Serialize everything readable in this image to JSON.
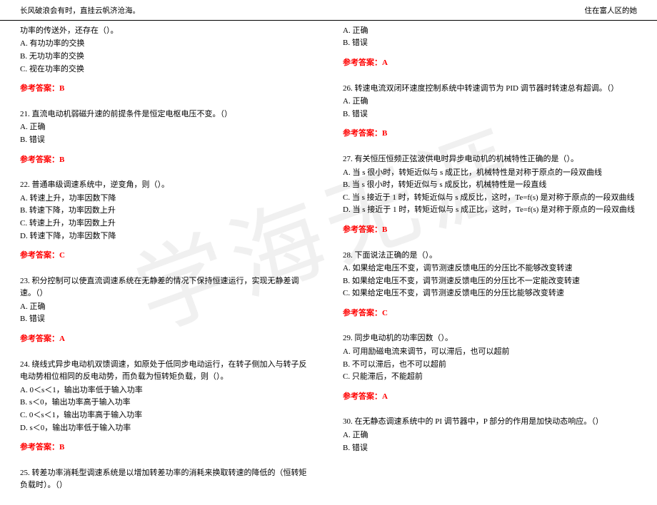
{
  "header": {
    "left": "长风破浪会有时，直挂云帆济沧海。",
    "right": "住在富人区的她"
  },
  "leftColumn": {
    "q20": {
      "cont": "功率的传送外，还存在（）。",
      "optA": "A. 有功功率的交换",
      "optB": "B. 无功功率的交换",
      "optC": "C. 视在功率的交换",
      "answer": "参考答案：B"
    },
    "q21": {
      "text": "21. 直流电动机弱磁升速的前提条件是恒定电枢电压不变。（）",
      "optA": "A. 正确",
      "optB": "B. 错误",
      "answer": "参考答案：B"
    },
    "q22": {
      "text": "22. 普通串级调速系统中，逆变角，则（）。",
      "optA": "A. 转速上升，功率因数下降",
      "optB": "B. 转速下降，功率因数上升",
      "optC": "C. 转速上升，功率因数上升",
      "optD": "D. 转速下降，功率因数下降",
      "answer": "参考答案：C"
    },
    "q23": {
      "text": "23. 积分控制可以使直流调速系统在无静差的情况下保持恒速运行，实现无静差调速。（）",
      "optA": "A. 正确",
      "optB": "B. 错误",
      "answer": "参考答案：A"
    },
    "q24": {
      "text": "24. 绕线式异步电动机双馈调速，如原处于低同步电动运行，在转子侧加入与转子反电动势相位相同的反电动势，而负载为恒转矩负载，则（）。",
      "optA": "A. 0＜s＜1，输出功率低于输入功率",
      "optB": "B. s＜0，输出功率高于输入功率",
      "optC": "C. 0＜s＜1，输出功率高于输入功率",
      "optD": "D. s＜0，输出功率低于输入功率",
      "answer": "参考答案：B"
    },
    "q25": {
      "text": "25. 转差功率消耗型调速系统是以增加转差功率的消耗来换取转速的降低的（恒转矩负载时）。（）"
    }
  },
  "rightColumn": {
    "q25r": {
      "optA": "A. 正确",
      "optB": "B. 错误",
      "answer": "参考答案：A"
    },
    "q26": {
      "text": "26. 转速电流双闭环速度控制系统中转速调节为 PID 调节器时转速总有超调。（）",
      "optA": "A. 正确",
      "optB": "B. 错误",
      "answer": "参考答案：B"
    },
    "q27": {
      "text": "27. 有关恒压恒频正弦波供电时异步电动机的机械特性正确的是（）。",
      "optA": "A. 当 s 很小时，转矩近似与 s 成正比，机械特性是对称于原点的一段双曲线",
      "optB": "B. 当 s 很小时，转矩近似与 s 成反比，机械特性是一段直线",
      "optC": "C. 当 s 接近于 1 时，转矩近似与 s 成反比，这时，Te=f(s) 是对称于原点的一段双曲线",
      "optD": "D. 当 s 接近于 1 时，转矩近似与 s 成正比，这时，Te=f(s) 是对称于原点的一段双曲线",
      "answer": "参考答案：B"
    },
    "q28": {
      "text": "28. 下面说法正确的是（）。",
      "optA": "A. 如果给定电压不变，调节测速反馈电压的分压比不能够改变转速",
      "optB": "B. 如果给定电压不变，调节测速反馈电压的分压比不一定能改变转速",
      "optC": "C. 如果给定电压不变，调节测速反馈电压的分压比能够改变转速",
      "answer": "参考答案：C"
    },
    "q29": {
      "text": "29. 同步电动机的功率因数（）。",
      "optA": "A. 可用励磁电流来调节，可以滞后，也可以超前",
      "optB": "B. 不可以滞后，也不可以超前",
      "optC": "C. 只能滞后，不能超前",
      "answer": "参考答案：A"
    },
    "q30": {
      "text": "30. 在无静态调速系统中的 PI 调节器中，P 部分的作用是加快动态响应。（）",
      "optA": "A. 正确",
      "optB": "B. 错误"
    }
  },
  "watermark": "学海无涯"
}
